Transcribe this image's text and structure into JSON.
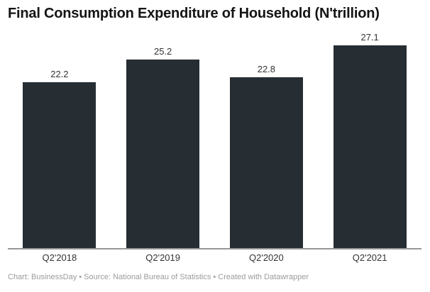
{
  "title": "Final Consumption Expenditure of Household (N'trillion)",
  "footer": "Chart: BusinessDay • Source: National Bureau of Statistics • Created with Datawrapper",
  "colors": {
    "bar": "#262d33",
    "axis_line": "#979797",
    "value_label": "#333333",
    "x_label": "#333333",
    "title": "#141414",
    "footer": "#9b9b9b",
    "background": "#ffffff"
  },
  "chart_data": {
    "type": "bar",
    "title": "Final Consumption Expenditure of Household (N'trillion)",
    "categories": [
      "Q2'2018",
      "Q2'2019",
      "Q2'2020",
      "Q2'2021"
    ],
    "values": [
      22.2,
      25.2,
      22.8,
      27.1
    ],
    "value_labels": [
      "22.2",
      "25.2",
      "22.8",
      "27.1"
    ],
    "xlabel": "",
    "ylabel": "",
    "ylim": [
      0,
      29
    ],
    "grid": false,
    "legend": false,
    "y_axis_shown": false,
    "value_labels_position": "above-bars"
  }
}
